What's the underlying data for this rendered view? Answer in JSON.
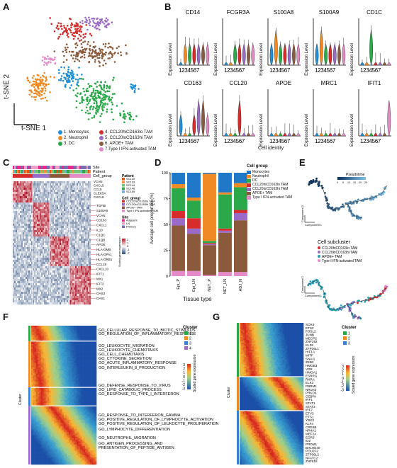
{
  "panels": {
    "A": "A",
    "B": "B",
    "C": "C",
    "D": "D",
    "E": "E",
    "F": "F",
    "G": "G"
  },
  "tsne": {
    "axis1": "t-SNE 1",
    "axis2": "t-SNE 2",
    "legend": [
      {
        "label": "1. Monocytes",
        "color": "#1f8fd6"
      },
      {
        "label": "2. Neutrophil",
        "color": "#f08a24"
      },
      {
        "label": "3. DC",
        "color": "#2aa84a"
      },
      {
        "label": "4. CCL20hiCD163lo TAM",
        "color": "#d62c2c"
      },
      {
        "label": "5. CCL20loCD163hi TAM",
        "color": "#9a6ac8"
      },
      {
        "label": "6. APOE+ TAM",
        "color": "#8b5a3c"
      },
      {
        "label": "7.Type I IFN-activated TAM",
        "color": "#e58ac8"
      }
    ]
  },
  "violins": {
    "ylabel": "Expression Level",
    "xticks": "1234567",
    "xlabel": "Cell identity",
    "genes": [
      "CD14",
      "FCGR3A",
      "S100A8",
      "S100A9",
      "CD1C",
      "CD163",
      "CCL20",
      "APOE",
      "MRC1",
      "IFIT1"
    ]
  },
  "heatmapC": {
    "bars": [
      "Site",
      "Patient",
      "Cell_group"
    ],
    "genes_top": [
      "VCAN",
      "CXCL5",
      "CCL5",
      "CLEC5A",
      "CXCL8"
    ],
    "genes": [
      "TGFBI",
      "S100A8",
      "VCAN",
      "CD163",
      "CXCL1",
      "IL10",
      "C1QC",
      "C1QB",
      "APOE",
      "HLA-DMB",
      "HLA-DPA1",
      "HLA-DRB1",
      "CCL18",
      "CXCL10",
      "IFIT1",
      "MX1",
      "IFIT2",
      "MX2",
      "OAS3",
      "OAS1"
    ],
    "legend_patient_title": "Patient",
    "patients": [
      "SC110",
      "SC133",
      "SC144",
      "SC146",
      "SC159"
    ],
    "legend_group_title": "Cell_group",
    "groups": [
      "CCL20hiCD163lo TAM",
      "CCL20loCD163hi TAM",
      "APOE+ TAM",
      "Type I IFN-activated TAM"
    ],
    "legend_site_title": "Site",
    "sites": [
      "Adjacent",
      "LN",
      "Primary"
    ],
    "scale_label": "Scaled gene expression",
    "scale_ticks": [
      "2",
      "1",
      "0",
      "-1",
      "-2"
    ]
  },
  "chartD": {
    "ylabel": "Average cell proportion (%)",
    "xlabel": "Tissue type",
    "yticks": [
      "100",
      "75",
      "50",
      "25",
      "0"
    ],
    "legend_title": "Cell group",
    "legend": [
      "Monocytes",
      "Neutrophil",
      "DC",
      "CCL20hiCD163lo TAM",
      "CCL20loCD163hi TAM",
      "APOE+ TAM",
      "Type I IFN-activated TAM"
    ]
  },
  "chart_data": {
    "type": "bar",
    "stacked": true,
    "categories": [
      "Epi_P",
      "Epi_LN",
      "NET_P",
      "NET_LN",
      "ADJ_N"
    ],
    "series": [
      {
        "name": "Monocytes",
        "color": "#1f78c8",
        "values": [
          11,
          24,
          1,
          19,
          10
        ]
      },
      {
        "name": "Neutrophil",
        "color": "#f08a24",
        "values": [
          4,
          3,
          65,
          2,
          4
        ]
      },
      {
        "name": "DC",
        "color": "#2aa84a",
        "values": [
          22,
          17,
          2,
          33,
          22
        ]
      },
      {
        "name": "CCL20hiCD163lo TAM",
        "color": "#d62c2c",
        "values": [
          7,
          10,
          1,
          2,
          3
        ]
      },
      {
        "name": "CCL20loCD163hi TAM",
        "color": "#9a6ac8",
        "values": [
          7,
          5,
          1,
          2,
          7
        ]
      },
      {
        "name": "APOE+ TAM",
        "color": "#8b5a3c",
        "values": [
          44,
          36,
          29,
          38,
          50
        ]
      },
      {
        "name": "Type I IFN-activated TAM",
        "color": "#e58ac8",
        "values": [
          5,
          5,
          1,
          4,
          4
        ]
      }
    ],
    "ylabel": "Average cell proportion (%)",
    "xlabel": "Tissue type",
    "ylim": [
      0,
      100
    ]
  },
  "trajectory": {
    "pseudotime_label": "Pseudotime",
    "pt_ticks": [
      "0",
      "5",
      "10",
      "15",
      "20",
      "25"
    ],
    "comp1": "Component 1",
    "comp2": "Component 2",
    "subcluster_title": "Cell subcluster",
    "subclusters": [
      "CCL20hiCD163lo TAM",
      "CCL20loCD163hi TAM",
      "APOE+ TAM",
      "Type I IFN-activated TAM"
    ]
  },
  "heatmapF": {
    "cluster_label": "Cluster",
    "cluster_side": "Cluster",
    "clusters": [
      "1",
      "2",
      "3",
      "4"
    ],
    "scale_label": "Scaled gene expression",
    "scale_ticks": [
      "3",
      "2",
      "1",
      "0",
      "-1",
      "-2",
      "-3"
    ],
    "terms": [
      "GO_CELLULAR_RESPONSE_TO_BIOTIC_STIMULUS",
      "GO_REGULATION_OF_INFLAMMATORY_RESPONSE",
      "GO_LEUKOCYTE_MIGRATION",
      "GO_LEUKOCYTE_CHEMOTAXIS",
      "GO_CELL_CHEMOTAXIS",
      "GO_CYTOKINE_SECRETION",
      "GO_ACUTE_INFLAMMATORY_RESPONSE",
      "GO_INTERLEUKIN_8_PRODUCTION",
      "GO_DEFENSE_RESPONSE_TO_VIRUS",
      "GO_LIPID_CATABOLIC_PROCESS",
      "GO_RESPONSE_TO_TYPE_I_INTERFERON",
      "GO_RESPONSE_TO_INTERFERON_GAMMA",
      "GO_POSITIVE_REGULATION_OF_LYMPHOCYTE_ACTIVATION",
      "GO_POSITIVE_REGULATION_OF_LEUKOCYTE_PROLIFERATION",
      "GO_LYMPHOCYTE_DIFFERENTIATION",
      "GO_NEUTROPHIL_MIGRATION",
      "GO_ANTIGEN_PROCESSING_AND",
      "PRESENTATION_OF_PEPTIDE_ANTIGEN"
    ]
  },
  "heatmapG": {
    "cluster_label": "Cluster",
    "cluster_side": "Cluster",
    "clusters": [
      "1",
      "2",
      "3"
    ],
    "scale_label": "Scaled gene expression",
    "scale_ticks": [
      "3",
      "2",
      "1",
      "0",
      "-1",
      "-2",
      "-3"
    ],
    "genes": [
      "SOX4",
      "ETS2",
      "FOSL2",
      "JUNB",
      "MECP2",
      "ZNF292",
      "KLF6",
      "ZFP36L1",
      "HIF1A",
      "MITF",
      "SNAI1",
      "ZEB2",
      "HMGB3",
      "VDR",
      "HMGA1",
      "ESRRG",
      "RXRA",
      "ELK3",
      "PBRM1",
      "NR1H3",
      "PRKD3",
      "CEBPA",
      "IRF1",
      "STAT1",
      "STAT3",
      "IRF7",
      "ETV3",
      "ETS1",
      "YBX3",
      "KLF4",
      "CREB5",
      "NR4A1",
      "MEF2A",
      "EGR3",
      "ID2",
      "PRDM1",
      "BHLHE40",
      "POU2F2",
      "ZFP36L2",
      "NFATC2",
      "ZNF618"
    ]
  }
}
